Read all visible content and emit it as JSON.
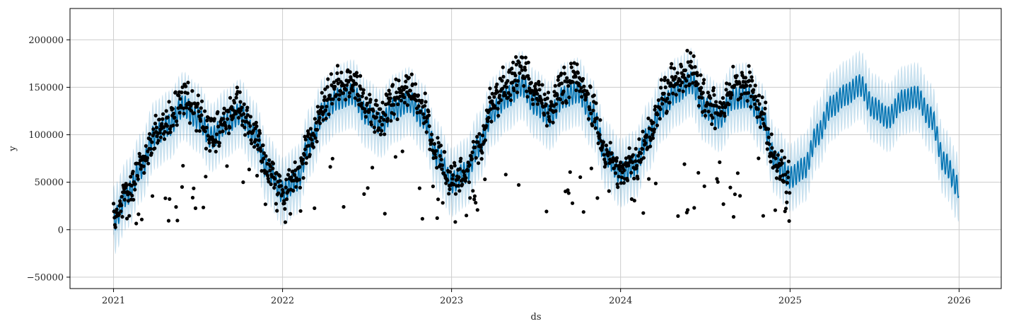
{
  "chart_data": {
    "type": "line",
    "title": "",
    "xlabel": "ds",
    "ylabel": "y",
    "xlim": [
      "2020-09-29",
      "2026-04-02"
    ],
    "ylim": [
      -62000,
      233000
    ],
    "grid": true,
    "x_ticks": [
      "2021-01-01",
      "2022-01-01",
      "2023-01-01",
      "2024-01-01",
      "2025-01-01",
      "2026-01-01"
    ],
    "x_tick_labels": [
      "2021",
      "2022",
      "2023",
      "2024",
      "2025",
      "2026"
    ],
    "y_ticks": [
      -50000,
      0,
      50000,
      100000,
      150000,
      200000
    ],
    "y_tick_labels": [
      "−50000",
      "0",
      "50000",
      "100000",
      "150000",
      "200000"
    ],
    "colors": {
      "forecast": "#0072B2",
      "interval": "#0072B2",
      "observed": "#000000",
      "grid": "#cccccc"
    },
    "forecast_range": [
      "2021-01-01",
      "2025-12-31"
    ],
    "observed_range": [
      "2021-01-01",
      "2024-12-31"
    ],
    "forecast_trend": [
      [
        "2021-01-01",
        10000
      ],
      [
        "2021-02-01",
        38000
      ],
      [
        "2021-03-01",
        65000
      ],
      [
        "2021-04-01",
        100000
      ],
      [
        "2021-05-01",
        110000
      ],
      [
        "2021-06-01",
        130000
      ],
      [
        "2021-07-01",
        118000
      ],
      [
        "2021-08-01",
        97000
      ],
      [
        "2021-09-01",
        112000
      ],
      [
        "2021-10-01",
        122000
      ],
      [
        "2021-11-01",
        100000
      ],
      [
        "2021-12-01",
        62000
      ],
      [
        "2022-01-01",
        40000
      ],
      [
        "2022-02-01",
        52000
      ],
      [
        "2022-03-01",
        92000
      ],
      [
        "2022-04-01",
        125000
      ],
      [
        "2022-05-01",
        138000
      ],
      [
        "2022-06-01",
        143000
      ],
      [
        "2022-07-01",
        122000
      ],
      [
        "2022-08-01",
        112000
      ],
      [
        "2022-09-01",
        128000
      ],
      [
        "2022-10-01",
        135000
      ],
      [
        "2022-11-01",
        118000
      ],
      [
        "2022-12-01",
        78000
      ],
      [
        "2023-01-01",
        50000
      ],
      [
        "2023-02-01",
        60000
      ],
      [
        "2023-03-01",
        88000
      ],
      [
        "2023-04-01",
        125000
      ],
      [
        "2023-05-01",
        140000
      ],
      [
        "2023-06-01",
        152000
      ],
      [
        "2023-07-01",
        132000
      ],
      [
        "2023-08-01",
        120000
      ],
      [
        "2023-09-01",
        140000
      ],
      [
        "2023-10-01",
        145000
      ],
      [
        "2023-11-01",
        122000
      ],
      [
        "2023-12-01",
        78000
      ],
      [
        "2024-01-01",
        60000
      ],
      [
        "2024-02-01",
        68000
      ],
      [
        "2024-03-01",
        98000
      ],
      [
        "2024-04-01",
        130000
      ],
      [
        "2024-05-01",
        145000
      ],
      [
        "2024-06-01",
        155000
      ],
      [
        "2024-07-01",
        128000
      ],
      [
        "2024-08-01",
        118000
      ],
      [
        "2024-09-01",
        138000
      ],
      [
        "2024-10-01",
        140000
      ],
      [
        "2024-11-01",
        118000
      ],
      [
        "2024-12-01",
        72000
      ],
      [
        "2025-01-01",
        55000
      ],
      [
        "2025-02-01",
        65000
      ],
      [
        "2025-03-01",
        100000
      ],
      [
        "2025-04-01",
        130000
      ],
      [
        "2025-05-01",
        142000
      ],
      [
        "2025-06-01",
        152000
      ],
      [
        "2025-07-01",
        128000
      ],
      [
        "2025-08-01",
        118000
      ],
      [
        "2025-09-01",
        136000
      ],
      [
        "2025-10-01",
        140000
      ],
      [
        "2025-11-01",
        118000
      ],
      [
        "2025-12-01",
        70000
      ],
      [
        "2025-12-31",
        45000
      ]
    ]
  }
}
